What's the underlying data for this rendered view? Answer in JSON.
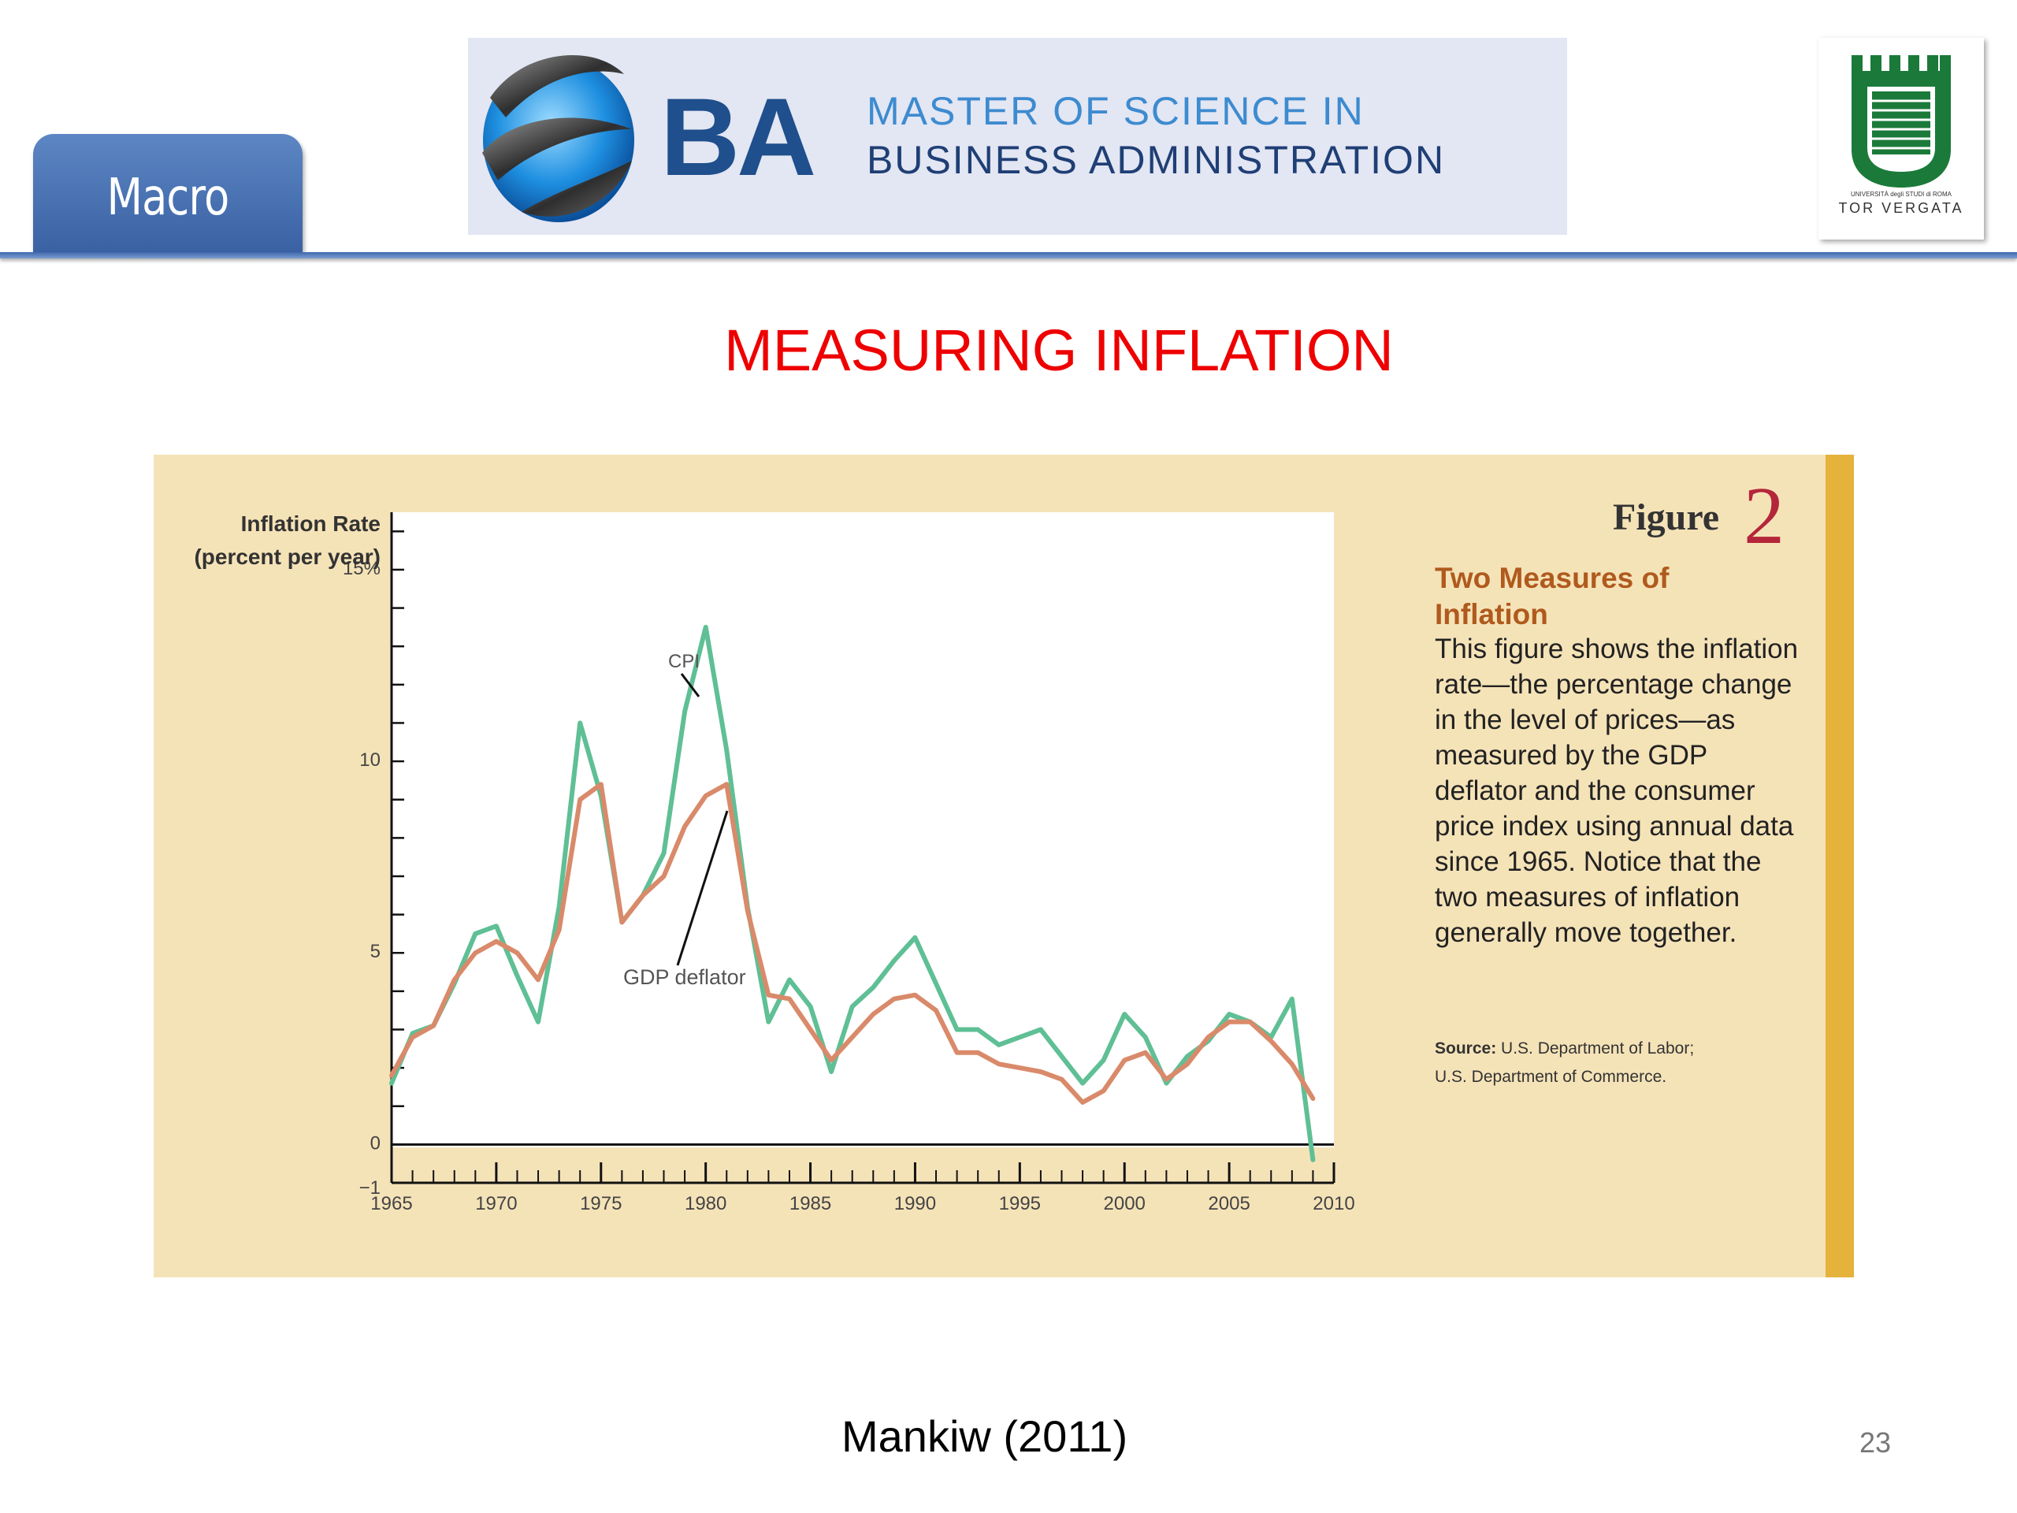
{
  "header": {
    "tab_label": "Macro",
    "banner_mark": "BA",
    "banner_line1": "MASTER OF SCIENCE IN",
    "banner_line2": "BUSINESS ADMINISTRATION",
    "univ_small": "UNIVERSITÀ degli STUDI di ROMA",
    "univ_name": "TOR VERGATA"
  },
  "slide": {
    "title": "MEASURING INFLATION",
    "citation": "Mankiw (2011)",
    "page_number": "23"
  },
  "figure": {
    "label": "Figure",
    "number": "2",
    "heading": "Two Measures of Inflation",
    "caption": "This figure shows the inflation rate—the percentage change in the level of prices—as measured by the GDP deflator and the consumer price index using annual data since 1965. Notice that the two measures of inflation generally move together.",
    "source_label": "Source:",
    "source_line1": "U.S. Department of Labor;",
    "source_line2": "U.S. Department of Commerce."
  },
  "colors": {
    "cpi": "#5fbf95",
    "gdp_deflator": "#d98a6a",
    "title": "#ee0000"
  },
  "chart_data": {
    "type": "line",
    "ylabel_line1": "Inflation Rate",
    "ylabel_line2": "(percent per year)",
    "ylim": [
      -1,
      15
    ],
    "xlim": [
      1965,
      2010
    ],
    "y_ticks": [
      {
        "value": 15,
        "label": "15%"
      },
      {
        "value": 10,
        "label": "10"
      },
      {
        "value": 5,
        "label": "5"
      },
      {
        "value": 0,
        "label": "0"
      },
      {
        "value": -1,
        "label": "−1"
      }
    ],
    "x_ticks": [
      {
        "value": 1965,
        "label": "1965"
      },
      {
        "value": 1970,
        "label": "1970"
      },
      {
        "value": 1975,
        "label": "1975"
      },
      {
        "value": 1980,
        "label": "1980"
      },
      {
        "value": 1985,
        "label": "1985"
      },
      {
        "value": 1990,
        "label": "1990"
      },
      {
        "value": 1995,
        "label": "1995"
      },
      {
        "value": 2000,
        "label": "2000"
      },
      {
        "value": 2005,
        "label": "2005"
      },
      {
        "value": 2010,
        "label": "2010"
      }
    ],
    "x": [
      1965,
      1966,
      1967,
      1968,
      1969,
      1970,
      1971,
      1972,
      1973,
      1974,
      1975,
      1976,
      1977,
      1978,
      1979,
      1980,
      1981,
      1982,
      1983,
      1984,
      1985,
      1986,
      1987,
      1988,
      1989,
      1990,
      1991,
      1992,
      1993,
      1994,
      1995,
      1996,
      1997,
      1998,
      1999,
      2000,
      2001,
      2002,
      2003,
      2004,
      2005,
      2006,
      2007,
      2008,
      2009
    ],
    "series": [
      {
        "name": "CPI",
        "values": [
          1.6,
          2.9,
          3.1,
          4.2,
          5.5,
          5.7,
          4.4,
          3.2,
          6.2,
          11.0,
          9.1,
          5.8,
          6.5,
          7.6,
          11.3,
          13.5,
          10.3,
          6.2,
          3.2,
          4.3,
          3.6,
          1.9,
          3.6,
          4.1,
          4.8,
          5.4,
          4.2,
          3.0,
          3.0,
          2.6,
          2.8,
          3.0,
          2.3,
          1.6,
          2.2,
          3.4,
          2.8,
          1.6,
          2.3,
          2.7,
          3.4,
          3.2,
          2.8,
          3.8,
          -0.4
        ]
      },
      {
        "name": "GDP deflator",
        "values": [
          1.8,
          2.8,
          3.1,
          4.3,
          5.0,
          5.3,
          5.0,
          4.3,
          5.6,
          9.0,
          9.4,
          5.8,
          6.5,
          7.0,
          8.3,
          9.1,
          9.4,
          6.1,
          3.9,
          3.8,
          3.0,
          2.2,
          2.8,
          3.4,
          3.8,
          3.9,
          3.5,
          2.4,
          2.4,
          2.1,
          2.0,
          1.9,
          1.7,
          1.1,
          1.4,
          2.2,
          2.4,
          1.7,
          2.1,
          2.8,
          3.2,
          3.2,
          2.7,
          2.1,
          1.2
        ]
      }
    ],
    "annotations": [
      {
        "text": "CPI",
        "series": "CPI"
      },
      {
        "text": "GDP deflator",
        "series": "GDP deflator"
      }
    ]
  }
}
